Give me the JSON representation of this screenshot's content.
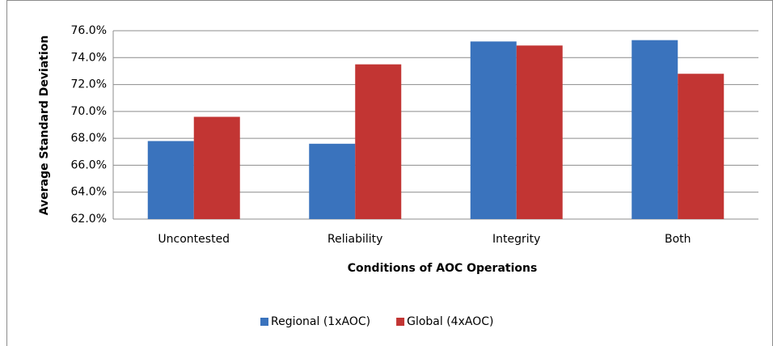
{
  "chart_data": {
    "type": "bar",
    "x_label": "Conditions of AOC Operations",
    "y_label": "Average Standard Deviation",
    "categories": [
      "Uncontested",
      "Reliability",
      "Integrity",
      "Both"
    ],
    "series": [
      {
        "name": "Regional (1xAOC)",
        "color": "#3a73bd",
        "values": [
          67.8,
          67.6,
          75.2,
          75.3
        ]
      },
      {
        "name": "Global (4xAOC)",
        "color": "#c23533",
        "values": [
          69.6,
          73.5,
          74.9,
          72.8
        ]
      }
    ],
    "ylim": [
      62,
      76
    ],
    "yticks": [
      {
        "value": 62,
        "label": "62.0%"
      },
      {
        "value": 64,
        "label": "64.0%"
      },
      {
        "value": 66,
        "label": "66.0%"
      },
      {
        "value": 68,
        "label": "68.0%"
      },
      {
        "value": 70,
        "label": "70.0%"
      },
      {
        "value": 72,
        "label": "72.0%"
      },
      {
        "value": 74,
        "label": "74.0%"
      },
      {
        "value": 76,
        "label": "76.0%"
      }
    ],
    "grid": true,
    "legend": "bottom"
  }
}
